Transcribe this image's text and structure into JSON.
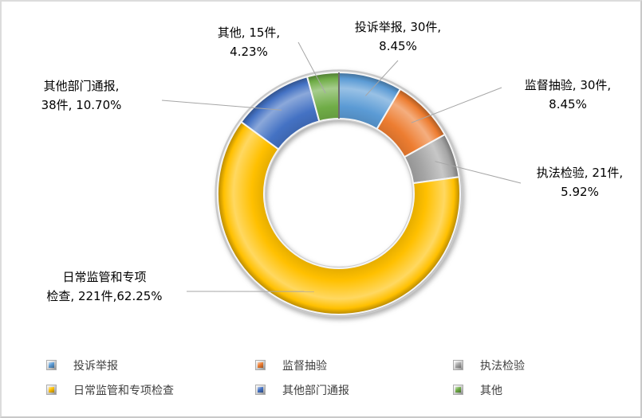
{
  "chart_data": {
    "type": "pie",
    "subtype": "doughnut",
    "title": "",
    "legend_position": "bottom",
    "background": "#FFFFFF",
    "frame_border_color": "#D9D9D9",
    "leader_line_color": "#A6A6A6",
    "series": [
      {
        "name": "投诉举报",
        "value": 30,
        "unit": "件",
        "percent": "8.45%",
        "color": "#5B9BD5"
      },
      {
        "name": "监督抽验",
        "value": 30,
        "unit": "件",
        "percent": "8.45%",
        "color": "#ED7D31"
      },
      {
        "name": "执法检验",
        "value": 21,
        "unit": "件",
        "percent": "5.92%",
        "color": "#A5A5A5"
      },
      {
        "name": "日常监管和专项检查",
        "value": 221,
        "unit": "件",
        "percent": "62.25%",
        "color": "#FFC000"
      },
      {
        "name": "其他部门通报",
        "value": 38,
        "unit": "件",
        "percent": "10.70%",
        "color": "#4472C4"
      },
      {
        "name": "其他",
        "value": 15,
        "unit": "件",
        "percent": "4.23%",
        "color": "#70AD47"
      }
    ],
    "data_labels": [
      {
        "line1": "投诉举报, 30件,",
        "line2": "8.45%"
      },
      {
        "line1": "监督抽验, 30件,",
        "line2": "8.45%"
      },
      {
        "line1": "执法检验, 21件,",
        "line2": "5.92%"
      },
      {
        "line1": "日常监管和专项",
        "line2": "检查, 221件,62.25%"
      },
      {
        "line1": "其他部门通报,",
        "line2": "38件, 10.70%"
      },
      {
        "line1": "其他, 15件,",
        "line2": "4.23%"
      }
    ]
  }
}
